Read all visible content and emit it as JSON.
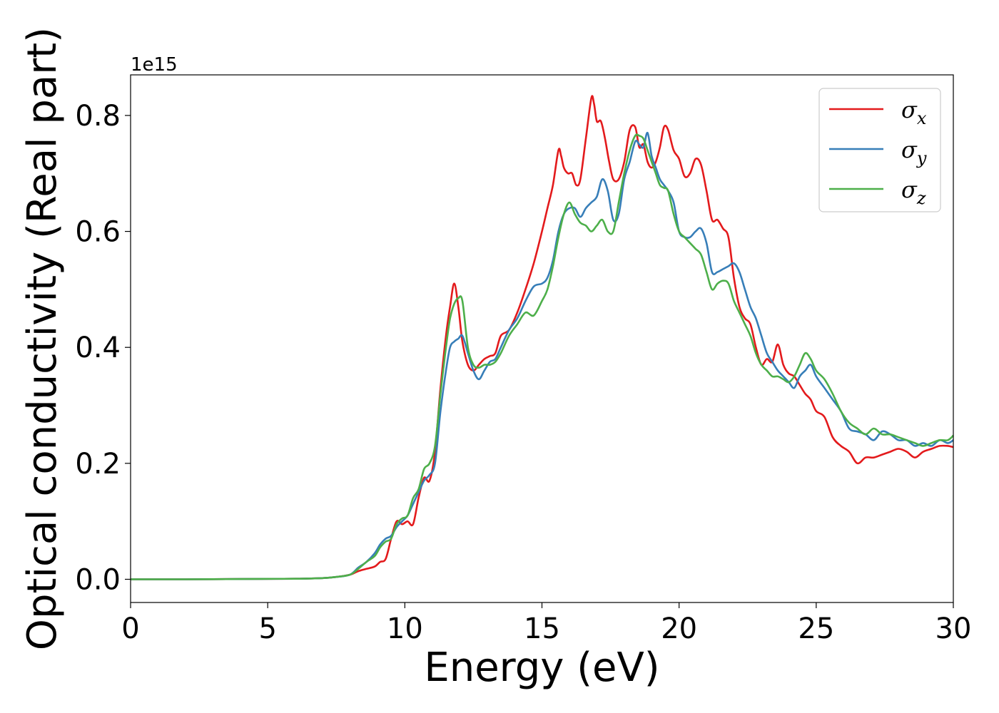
{
  "chart_data": {
    "type": "line",
    "xlabel": "Energy (eV)",
    "ylabel": "Optical conductivity (Real part)",
    "y_offset_label": "1e15",
    "xlim": [
      0,
      30
    ],
    "ylim": [
      -0.04,
      0.87
    ],
    "xticks": [
      0,
      5,
      10,
      15,
      20,
      25,
      30
    ],
    "xtick_labels": [
      "0",
      "5",
      "10",
      "15",
      "20",
      "25",
      "30"
    ],
    "yticks": [
      0.0,
      0.2,
      0.4,
      0.6,
      0.8
    ],
    "ytick_labels": [
      "0.0",
      "0.2",
      "0.4",
      "0.6",
      "0.8"
    ],
    "grid": false,
    "legend_position": "top-right",
    "series": [
      {
        "name": "σx",
        "symbol": "σ",
        "subscript": "x",
        "color": "#e31a1c",
        "x": [
          0,
          2,
          4,
          6,
          7,
          7.5,
          8,
          8.3,
          8.6,
          8.9,
          9.1,
          9.3,
          9.5,
          9.7,
          9.9,
          10.1,
          10.3,
          10.5,
          10.7,
          10.9,
          11.1,
          11.3,
          11.5,
          11.65,
          11.8,
          11.95,
          12.1,
          12.3,
          12.5,
          12.7,
          12.9,
          13.1,
          13.3,
          13.5,
          13.8,
          14.1,
          14.4,
          14.7,
          15.0,
          15.2,
          15.4,
          15.6,
          15.7,
          15.8,
          15.95,
          16.1,
          16.25,
          16.4,
          16.6,
          16.8,
          16.9,
          17.0,
          17.15,
          17.3,
          17.45,
          17.6,
          17.8,
          18.0,
          18.2,
          18.4,
          18.55,
          18.7,
          18.85,
          19.0,
          19.15,
          19.3,
          19.45,
          19.6,
          19.8,
          20.0,
          20.2,
          20.4,
          20.6,
          20.8,
          21.0,
          21.2,
          21.4,
          21.6,
          21.8,
          22.0,
          22.2,
          22.4,
          22.6,
          22.8,
          23.0,
          23.2,
          23.4,
          23.6,
          23.8,
          24.0,
          24.2,
          24.4,
          24.6,
          24.8,
          25.0,
          25.3,
          25.6,
          25.9,
          26.2,
          26.5,
          26.8,
          27.1,
          27.4,
          27.7,
          28.0,
          28.3,
          28.6,
          28.9,
          29.2,
          29.5,
          29.8,
          30.0
        ],
        "values": [
          0,
          0,
          0.0005,
          0.001,
          0.002,
          0.004,
          0.008,
          0.014,
          0.018,
          0.022,
          0.03,
          0.035,
          0.07,
          0.1,
          0.095,
          0.1,
          0.095,
          0.14,
          0.175,
          0.17,
          0.22,
          0.33,
          0.42,
          0.47,
          0.51,
          0.47,
          0.41,
          0.37,
          0.36,
          0.37,
          0.38,
          0.385,
          0.39,
          0.42,
          0.43,
          0.46,
          0.5,
          0.545,
          0.6,
          0.64,
          0.68,
          0.74,
          0.73,
          0.71,
          0.7,
          0.7,
          0.68,
          0.69,
          0.76,
          0.83,
          0.82,
          0.79,
          0.79,
          0.76,
          0.72,
          0.69,
          0.69,
          0.72,
          0.775,
          0.78,
          0.745,
          0.75,
          0.72,
          0.71,
          0.72,
          0.745,
          0.78,
          0.775,
          0.74,
          0.725,
          0.695,
          0.7,
          0.725,
          0.715,
          0.67,
          0.62,
          0.62,
          0.605,
          0.59,
          0.52,
          0.47,
          0.45,
          0.44,
          0.4,
          0.37,
          0.38,
          0.375,
          0.405,
          0.37,
          0.355,
          0.35,
          0.335,
          0.32,
          0.31,
          0.29,
          0.28,
          0.245,
          0.23,
          0.22,
          0.2,
          0.21,
          0.21,
          0.215,
          0.22,
          0.225,
          0.22,
          0.21,
          0.22,
          0.225,
          0.23,
          0.23,
          0.228
        ]
      },
      {
        "name": "σy",
        "symbol": "σ",
        "subscript": "y",
        "color": "#377eb8",
        "x": [
          0,
          2,
          4,
          6,
          7,
          7.5,
          8,
          8.3,
          8.6,
          8.9,
          9.1,
          9.3,
          9.5,
          9.7,
          9.9,
          10.1,
          10.3,
          10.5,
          10.7,
          10.9,
          11.1,
          11.3,
          11.5,
          11.65,
          11.8,
          11.95,
          12.1,
          12.3,
          12.5,
          12.7,
          12.9,
          13.1,
          13.3,
          13.5,
          13.8,
          14.1,
          14.4,
          14.7,
          15.0,
          15.2,
          15.4,
          15.6,
          15.8,
          16.0,
          16.2,
          16.4,
          16.6,
          16.8,
          17.0,
          17.2,
          17.4,
          17.6,
          17.8,
          18.0,
          18.2,
          18.4,
          18.55,
          18.7,
          18.85,
          19.0,
          19.15,
          19.3,
          19.45,
          19.6,
          19.8,
          20.0,
          20.2,
          20.4,
          20.6,
          20.8,
          21.0,
          21.2,
          21.4,
          21.6,
          21.8,
          22.0,
          22.2,
          22.4,
          22.6,
          22.8,
          23.0,
          23.2,
          23.4,
          23.6,
          23.8,
          24.0,
          24.2,
          24.4,
          24.6,
          24.8,
          25.0,
          25.3,
          25.6,
          25.9,
          26.2,
          26.5,
          26.8,
          27.1,
          27.4,
          27.7,
          28.0,
          28.3,
          28.6,
          28.9,
          29.2,
          29.5,
          29.8,
          30.0
        ],
        "values": [
          0,
          0,
          0.0005,
          0.001,
          0.002,
          0.004,
          0.008,
          0.02,
          0.03,
          0.045,
          0.06,
          0.07,
          0.075,
          0.09,
          0.1,
          0.11,
          0.13,
          0.15,
          0.17,
          0.18,
          0.2,
          0.29,
          0.36,
          0.4,
          0.41,
          0.415,
          0.42,
          0.39,
          0.36,
          0.345,
          0.36,
          0.375,
          0.38,
          0.4,
          0.43,
          0.45,
          0.48,
          0.505,
          0.51,
          0.52,
          0.55,
          0.6,
          0.63,
          0.64,
          0.64,
          0.625,
          0.64,
          0.65,
          0.66,
          0.69,
          0.67,
          0.62,
          0.63,
          0.69,
          0.72,
          0.755,
          0.75,
          0.745,
          0.77,
          0.73,
          0.71,
          0.69,
          0.68,
          0.67,
          0.65,
          0.6,
          0.59,
          0.59,
          0.6,
          0.605,
          0.58,
          0.53,
          0.53,
          0.535,
          0.54,
          0.545,
          0.53,
          0.5,
          0.47,
          0.45,
          0.42,
          0.39,
          0.375,
          0.36,
          0.35,
          0.34,
          0.33,
          0.35,
          0.36,
          0.37,
          0.35,
          0.33,
          0.31,
          0.29,
          0.26,
          0.255,
          0.25,
          0.24,
          0.255,
          0.25,
          0.24,
          0.24,
          0.23,
          0.235,
          0.23,
          0.24,
          0.235,
          0.24
        ]
      },
      {
        "name": "σz",
        "symbol": "σ",
        "subscript": "z",
        "color": "#4daf4a",
        "x": [
          0,
          2,
          4,
          6,
          7,
          7.5,
          8,
          8.3,
          8.6,
          8.9,
          9.1,
          9.3,
          9.5,
          9.7,
          9.9,
          10.1,
          10.3,
          10.5,
          10.7,
          10.9,
          11.1,
          11.3,
          11.5,
          11.65,
          11.8,
          11.95,
          12.1,
          12.3,
          12.5,
          12.7,
          12.9,
          13.1,
          13.3,
          13.5,
          13.8,
          14.1,
          14.4,
          14.7,
          15.0,
          15.2,
          15.4,
          15.6,
          15.8,
          16.0,
          16.2,
          16.4,
          16.6,
          16.8,
          17.0,
          17.2,
          17.4,
          17.6,
          17.8,
          18.0,
          18.2,
          18.4,
          18.55,
          18.7,
          18.85,
          19.0,
          19.15,
          19.3,
          19.45,
          19.6,
          19.8,
          20.0,
          20.2,
          20.4,
          20.6,
          20.8,
          21.0,
          21.2,
          21.4,
          21.6,
          21.8,
          22.0,
          22.2,
          22.4,
          22.6,
          22.8,
          23.0,
          23.2,
          23.4,
          23.6,
          23.8,
          24.0,
          24.2,
          24.4,
          24.6,
          24.8,
          25.0,
          25.3,
          25.6,
          25.9,
          26.2,
          26.5,
          26.8,
          27.1,
          27.4,
          27.7,
          28.0,
          28.3,
          28.6,
          28.9,
          29.2,
          29.5,
          29.8,
          30.0
        ],
        "values": [
          0,
          0,
          0.0005,
          0.001,
          0.002,
          0.004,
          0.008,
          0.018,
          0.03,
          0.04,
          0.055,
          0.065,
          0.07,
          0.095,
          0.105,
          0.11,
          0.14,
          0.155,
          0.19,
          0.2,
          0.23,
          0.32,
          0.4,
          0.45,
          0.475,
          0.485,
          0.48,
          0.4,
          0.37,
          0.365,
          0.37,
          0.37,
          0.375,
          0.39,
          0.42,
          0.44,
          0.46,
          0.455,
          0.48,
          0.5,
          0.54,
          0.59,
          0.63,
          0.65,
          0.63,
          0.615,
          0.61,
          0.6,
          0.61,
          0.62,
          0.6,
          0.6,
          0.65,
          0.7,
          0.74,
          0.765,
          0.765,
          0.76,
          0.74,
          0.72,
          0.7,
          0.68,
          0.675,
          0.67,
          0.63,
          0.6,
          0.59,
          0.58,
          0.57,
          0.56,
          0.53,
          0.5,
          0.51,
          0.515,
          0.51,
          0.48,
          0.46,
          0.44,
          0.42,
          0.39,
          0.37,
          0.36,
          0.35,
          0.35,
          0.345,
          0.34,
          0.35,
          0.37,
          0.39,
          0.38,
          0.36,
          0.345,
          0.32,
          0.29,
          0.27,
          0.26,
          0.25,
          0.26,
          0.25,
          0.25,
          0.245,
          0.24,
          0.235,
          0.23,
          0.235,
          0.24,
          0.24,
          0.248
        ]
      }
    ]
  }
}
